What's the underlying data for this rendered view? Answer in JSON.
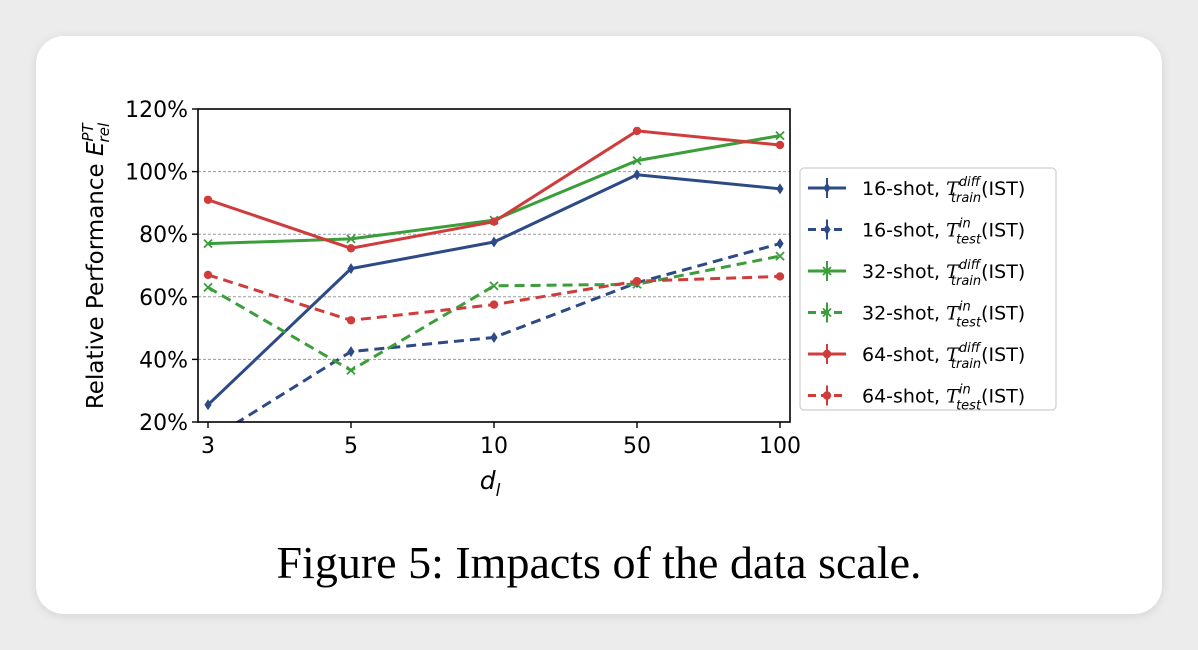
{
  "caption": "Figure 5: Impacts of the data scale.",
  "chart_data": {
    "type": "line",
    "categories": [
      "3",
      "5",
      "10",
      "50",
      "100"
    ],
    "xlabel": {
      "base": "d",
      "sub": "l"
    },
    "ylabel": {
      "text": "Relative Performance ",
      "base": "E",
      "sup": "PT",
      "sub": "rel"
    },
    "y_ticks": [
      "20%",
      "40%",
      "60%",
      "80%",
      "100%",
      "120%"
    ],
    "ylim": [
      20,
      120
    ],
    "grid": "horizontal dashed",
    "legend_position": "right",
    "series": [
      {
        "name": "16-shot, T_train^diff(IST)",
        "label_prefix": "16-shot, ",
        "label_sup": "diff",
        "label_sub": "train",
        "label_suffix": "(IST)",
        "color": "#2d4a87",
        "dash": false,
        "marker": "diamond",
        "values": [
          25.5,
          69,
          77.5,
          99,
          94.5
        ]
      },
      {
        "name": "16-shot, T_test^in(IST)",
        "label_prefix": "16-shot, ",
        "label_sup": "in",
        "label_sub": "test",
        "label_suffix": "(IST)",
        "color": "#2d4a87",
        "dash": true,
        "marker": "diamond",
        "values": [
          14,
          42.5,
          47,
          64.5,
          77
        ]
      },
      {
        "name": "32-shot, T_train^diff(IST)",
        "label_prefix": "32-shot, ",
        "label_sup": "diff",
        "label_sub": "train",
        "label_suffix": "(IST)",
        "color": "#3a9e3a",
        "dash": false,
        "marker": "x",
        "values": [
          77,
          78.5,
          84.5,
          103.5,
          111.5
        ]
      },
      {
        "name": "32-shot, T_test^in(IST)",
        "label_prefix": "32-shot, ",
        "label_sup": "in",
        "label_sub": "test",
        "label_suffix": "(IST)",
        "color": "#3a9e3a",
        "dash": true,
        "marker": "x",
        "values": [
          63,
          36.5,
          63.5,
          64,
          73
        ]
      },
      {
        "name": "64-shot, T_train^diff(IST)",
        "label_prefix": "64-shot, ",
        "label_sup": "diff",
        "label_sub": "train",
        "label_suffix": "(IST)",
        "color": "#d03c3c",
        "dash": false,
        "marker": "circle",
        "values": [
          91,
          75.5,
          84,
          113,
          108.5
        ]
      },
      {
        "name": "64-shot, T_test^in(IST)",
        "label_prefix": "64-shot, ",
        "label_sup": "in",
        "label_sub": "test",
        "label_suffix": "(IST)",
        "color": "#d03c3c",
        "dash": true,
        "marker": "circle",
        "values": [
          67,
          52.5,
          57.5,
          65,
          66.5
        ]
      }
    ]
  }
}
